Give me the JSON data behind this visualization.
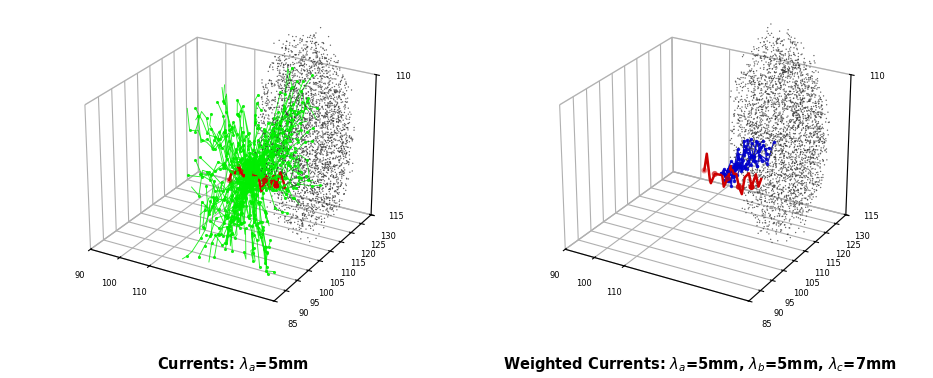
{
  "fig_width": 9.33,
  "fig_height": 3.78,
  "dpi": 100,
  "background_color": "#ffffff",
  "left_label": "Currents: $\\lambda_a$=5mm",
  "right_label": "Weighted Currents: $\\lambda_a$=5mm, $\\lambda_b$=5mm, $\\lambda_c$=7mm",
  "label_fontsize": 10.5,
  "label_fontweight": "bold",
  "green_color": "#00ee00",
  "blue_color": "#0000cc",
  "red_color": "#cc0000",
  "brain_color": "#333333",
  "n_brain_pts": 3000,
  "n_green_tracts": 118,
  "n_blue_tracts": 8,
  "view_elev": 25,
  "view_azim": -60,
  "tick_fontsize": 6
}
